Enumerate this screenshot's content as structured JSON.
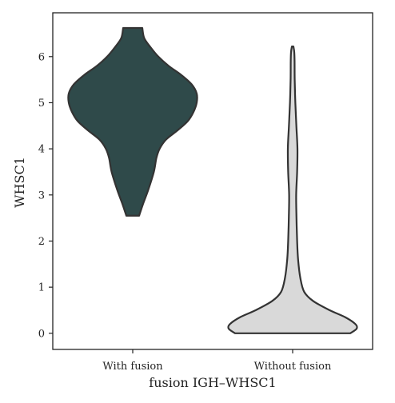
{
  "chart_data": {
    "type": "violin",
    "title": "",
    "xlabel": "fusion IGH–WHSC1",
    "ylabel": "WHSC1",
    "ylim": [
      -0.35,
      6.95
    ],
    "yticks": [
      0,
      1,
      2,
      3,
      4,
      5,
      6
    ],
    "grid": false,
    "categories": [
      "With fusion",
      "Without fusion"
    ],
    "series": [
      {
        "category": "With fusion",
        "fill": "#2f4a4a",
        "y_range": [
          2.55,
          6.62
        ],
        "profile": [
          [
            2.55,
            0.1
          ],
          [
            2.8,
            0.16
          ],
          [
            3.1,
            0.24
          ],
          [
            3.5,
            0.33
          ],
          [
            3.8,
            0.37
          ],
          [
            4.0,
            0.42
          ],
          [
            4.2,
            0.52
          ],
          [
            4.4,
            0.7
          ],
          [
            4.6,
            0.86
          ],
          [
            4.8,
            0.95
          ],
          [
            5.0,
            1.0
          ],
          [
            5.2,
            1.0
          ],
          [
            5.4,
            0.92
          ],
          [
            5.6,
            0.76
          ],
          [
            5.8,
            0.56
          ],
          [
            6.0,
            0.4
          ],
          [
            6.2,
            0.28
          ],
          [
            6.4,
            0.18
          ],
          [
            6.62,
            0.15
          ]
        ]
      },
      {
        "category": "Without fusion",
        "fill": "#d9d9d9",
        "y_range": [
          0.0,
          6.22
        ],
        "profile": [
          [
            0.0,
            0.9
          ],
          [
            0.1,
            1.0
          ],
          [
            0.2,
            0.98
          ],
          [
            0.35,
            0.82
          ],
          [
            0.5,
            0.58
          ],
          [
            0.7,
            0.32
          ],
          [
            0.9,
            0.18
          ],
          [
            1.2,
            0.12
          ],
          [
            1.6,
            0.085
          ],
          [
            2.0,
            0.07
          ],
          [
            2.5,
            0.06
          ],
          [
            3.0,
            0.055
          ],
          [
            3.5,
            0.07
          ],
          [
            4.0,
            0.075
          ],
          [
            4.5,
            0.058
          ],
          [
            5.0,
            0.042
          ],
          [
            5.5,
            0.032
          ],
          [
            5.9,
            0.03
          ],
          [
            6.1,
            0.025
          ],
          [
            6.22,
            0.012
          ]
        ]
      }
    ]
  }
}
